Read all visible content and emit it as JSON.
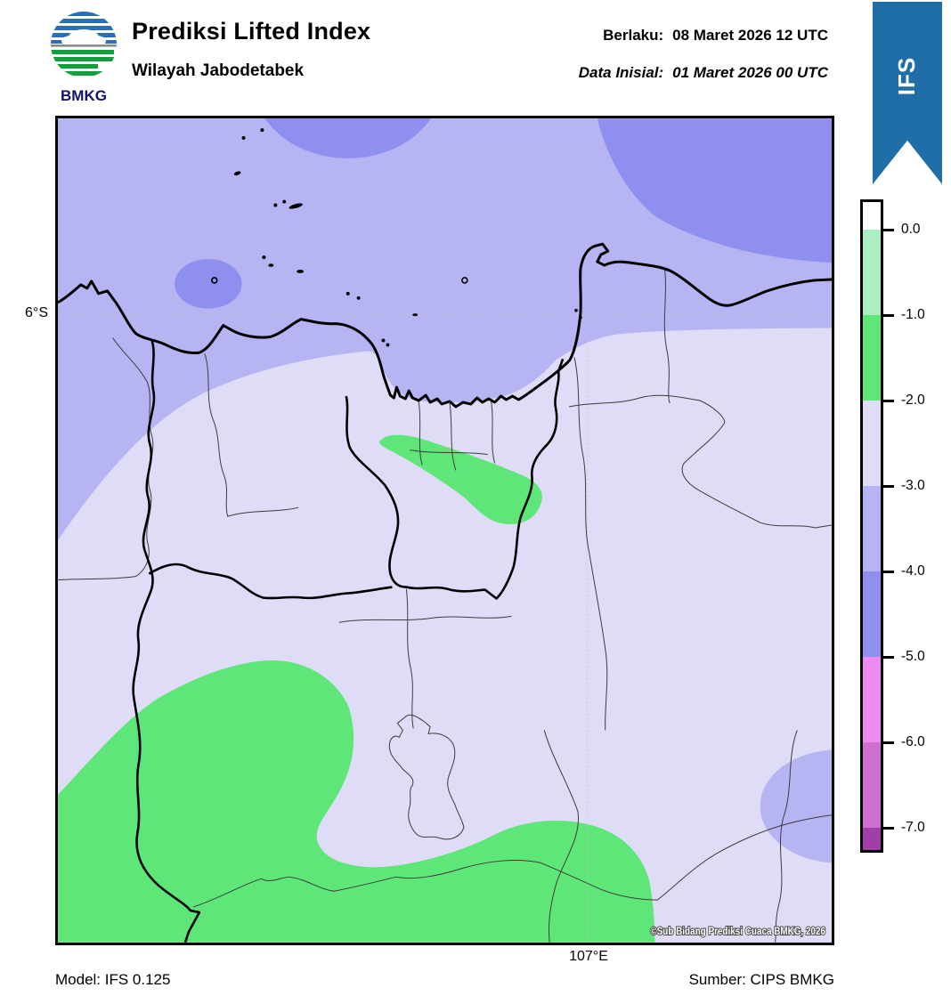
{
  "header": {
    "logo_text": "BMKG",
    "title": "Prediksi Lifted Index",
    "subtitle": "Wilayah Jabodetabek",
    "valid_label": "Berlaku:",
    "valid_value": "08 Maret 2026 12 UTC",
    "initial_label": "Data Inisial:",
    "initial_value": "01 Maret 2026 00 UTC",
    "ribbon_text": "IFS",
    "ribbon_color": "#1f6ea7"
  },
  "map": {
    "lat_label": "6°S",
    "lon_label": "107°E",
    "copyright": "©Sub Bidang Prediksi Cuaca BMKG, 2026"
  },
  "footer": {
    "model": "Model: IFS 0.125",
    "source": "Sumber: CIPS BMKG"
  },
  "palette": {
    "sea_band": "#b6b4f2",
    "land_band": "#dedcf6",
    "deep_band": "#8f8ff0",
    "green_band": "#5fe679",
    "logo_blue": "#2a6cc0",
    "logo_green": "#129e3c",
    "logo_text_color": "#13136b"
  },
  "colorbar": {
    "tick_labels": [
      "0.0",
      "-1.0",
      "-2.0",
      "-3.0",
      "-4.0",
      "-5.0",
      "-6.0",
      "-7.0"
    ],
    "segment_colors": [
      "#ffffff",
      "#aaeec2",
      "#5fe679",
      "#dedcf6",
      "#b6b4f2",
      "#8f8ff0",
      "#ee8af0",
      "#cd70d0",
      "#a33ea8"
    ],
    "segment_ranges": [
      "> 0.0",
      "0.0 to -1.0",
      "-1.0 to -2.0",
      "-2.0 to -3.0",
      "-3.0 to -4.0",
      "-4.0 to -5.0",
      "-5.0 to -6.0",
      "-6.0 to -7.0",
      "< -7.0"
    ]
  },
  "chart_data": {
    "type": "heatmap",
    "title": "Prediksi Lifted Index",
    "region": "Wilayah Jabodetabek",
    "legend_ticks": [
      0.0,
      -1.0,
      -2.0,
      -3.0,
      -4.0,
      -5.0,
      -6.0,
      -7.0
    ],
    "grid": {
      "lat_line": "6°S",
      "lon_line": "107°E"
    },
    "filled_contours": [
      {
        "band": "-1 to -2 (green)",
        "locations": [
          "central Jakarta–Bekasi teardrop blob",
          "large south-west blob",
          "bottom edge band to x≈107°E+"
        ]
      },
      {
        "band": "-2 to -3 (pale lavender)",
        "locations": [
          "most inland area"
        ]
      },
      {
        "band": "-3 to -4 (periwinkle)",
        "locations": [
          "sea / northern third",
          "west edge tongue",
          "small blob at lower-right edge"
        ]
      },
      {
        "band": "-4 to -5 (blue-purple)",
        "locations": [
          "top-middle ellipse",
          "top-right corner lobe",
          "small oval near 6°S west"
        ]
      }
    ]
  }
}
